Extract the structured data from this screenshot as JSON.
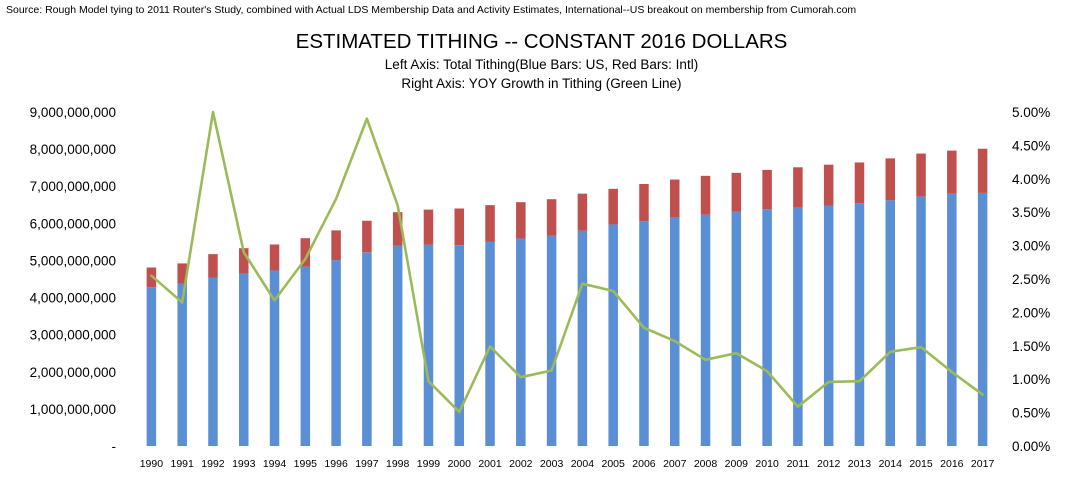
{
  "chart_data": {
    "type": "bar",
    "source": "Source: Rough Model tying to 2011 Router's Study, combined with Actual LDS Membership Data and Activity Estimates, International--US breakout on membership from Cumorah.com",
    "title": "ESTIMATED TITHING -- CONSTANT 2016 DOLLARS",
    "subtitle_lines": [
      "Left Axis: Total Tithing(Blue Bars: US, Red Bars: Intl)",
      "Right Axis: YOY Growth in Tithing (Green Line)"
    ],
    "stacked": true,
    "grid": false,
    "legend": "none",
    "categories": [
      "1990",
      "1991",
      "1992",
      "1993",
      "1994",
      "1995",
      "1996",
      "1997",
      "1998",
      "1999",
      "2000",
      "2001",
      "2002",
      "2003",
      "2004",
      "2005",
      "2006",
      "2007",
      "2008",
      "2009",
      "2010",
      "2011",
      "2012",
      "2013",
      "2014",
      "2015",
      "2016",
      "2017"
    ],
    "series": [
      {
        "axis": "left",
        "type": "bar",
        "color": "#5B8FD5",
        "values": [
          4280000000,
          4380000000,
          4540000000,
          4650000000,
          4730000000,
          4830000000,
          5010000000,
          5220000000,
          5400000000,
          5420000000,
          5410000000,
          5510000000,
          5590000000,
          5670000000,
          5800000000,
          5970000000,
          6060000000,
          6160000000,
          6230000000,
          6310000000,
          6380000000,
          6420000000,
          6480000000,
          6540000000,
          6620000000,
          6720000000,
          6800000000,
          6820000000
        ]
      },
      {
        "axis": "left",
        "type": "bar",
        "color": "#C0504D",
        "values": [
          530000000,
          540000000,
          630000000,
          680000000,
          700000000,
          770000000,
          800000000,
          850000000,
          900000000,
          950000000,
          990000000,
          980000000,
          980000000,
          980000000,
          1000000000,
          960000000,
          1000000000,
          1020000000,
          1050000000,
          1050000000,
          1060000000,
          1090000000,
          1100000000,
          1100000000,
          1130000000,
          1160000000,
          1160000000,
          1190000000
        ]
      },
      {
        "axis": "right",
        "type": "line",
        "color": "#9BBB59",
        "values": [
          2.55,
          2.15,
          5.0,
          2.9,
          2.18,
          2.8,
          3.7,
          4.9,
          3.6,
          0.97,
          0.51,
          1.49,
          1.03,
          1.13,
          2.43,
          2.32,
          1.77,
          1.57,
          1.29,
          1.39,
          1.12,
          0.59,
          0.96,
          0.97,
          1.41,
          1.48,
          1.11,
          0.77
        ]
      }
    ],
    "left_axis": {
      "ylim": [
        0,
        9000000000
      ],
      "ticks": [
        0,
        1000000000,
        2000000000,
        3000000000,
        4000000000,
        5000000000,
        6000000000,
        7000000000,
        8000000000,
        9000000000
      ],
      "tick_labels": [
        "-",
        "1,000,000,000",
        "2,000,000,000",
        "3,000,000,000",
        "4,000,000,000",
        "5,000,000,000",
        "6,000,000,000",
        "7,000,000,000",
        "8,000,000,000",
        "9,000,000,000"
      ]
    },
    "right_axis": {
      "ylim": [
        0,
        5.0
      ],
      "ticks": [
        0,
        0.5,
        1.0,
        1.5,
        2.0,
        2.5,
        3.0,
        3.5,
        4.0,
        4.5,
        5.0
      ],
      "tick_labels": [
        "0.00%",
        "0.50%",
        "1.00%",
        "1.50%",
        "2.00%",
        "2.50%",
        "3.00%",
        "3.50%",
        "4.00%",
        "4.50%",
        "5.00%"
      ]
    }
  }
}
